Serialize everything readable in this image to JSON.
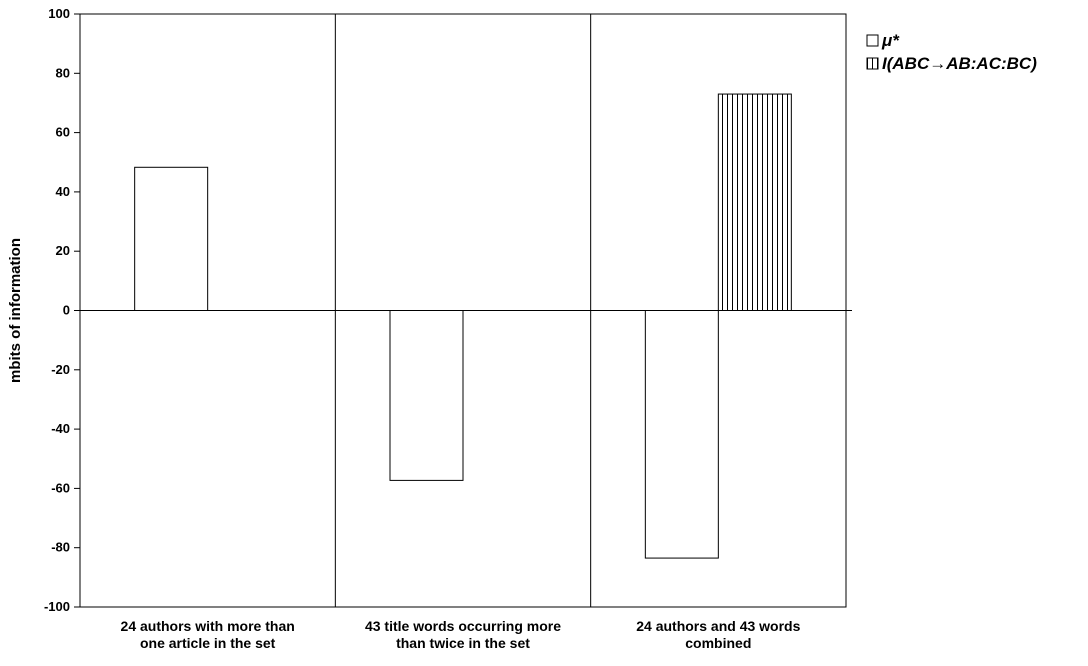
{
  "chart_data": {
    "type": "bar",
    "title": "",
    "xlabel": "",
    "ylabel": "mbits of information",
    "ylim": [
      -100,
      100
    ],
    "ytick_step": 20,
    "yticks": [
      "100",
      "80",
      "60",
      "40",
      "20",
      "0",
      "-20",
      "-40",
      "-60",
      "-80",
      "-100"
    ],
    "grid": false,
    "categories": [
      [
        "24 authors with more than",
        "one article in the set"
      ],
      [
        "43 title words occurring more",
        "than twice in the set"
      ],
      [
        "24 authors and 43 words",
        "combined"
      ]
    ],
    "series": [
      {
        "name": "μ*",
        "pattern": "plain",
        "values": [
          48.3,
          -57.3,
          -83.5
        ]
      },
      {
        "name": "I(ABC→AB:AC:BC)",
        "pattern": "vertical-stripes",
        "values": [
          null,
          null,
          73
        ]
      }
    ],
    "legend_position": "top-right",
    "colors": {
      "bar_fill": "#ffffff",
      "stroke": "#000000"
    }
  }
}
